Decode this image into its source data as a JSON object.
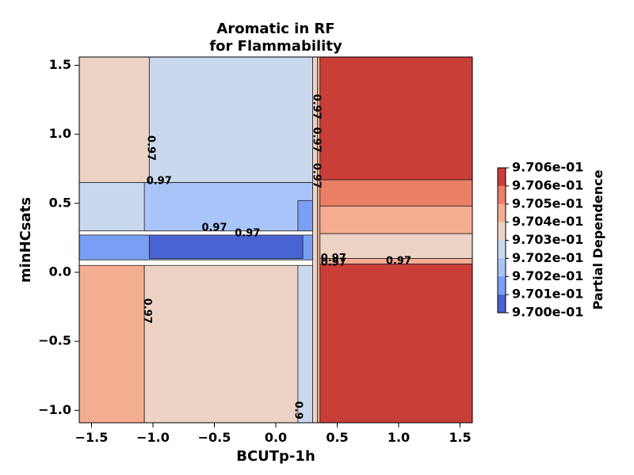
{
  "chart_data": {
    "type": "contour",
    "title_lines": [
      "Aromatic in RF",
      "for Flammability"
    ],
    "xlabel": "BCUTp-1h",
    "ylabel": "minHCsats",
    "xlim": [
      -1.6,
      1.6
    ],
    "ylim": [
      -1.09,
      1.56
    ],
    "xticks": [
      {
        "value": -1.5,
        "label": "−1.5"
      },
      {
        "value": -1.0,
        "label": "−1.0"
      },
      {
        "value": -0.5,
        "label": "−0.5"
      },
      {
        "value": 0.0,
        "label": "0.0"
      },
      {
        "value": 0.5,
        "label": "0.5"
      },
      {
        "value": 1.0,
        "label": "1.0"
      },
      {
        "value": 1.5,
        "label": "1.5"
      }
    ],
    "yticks": [
      {
        "value": -1.0,
        "label": "−1.0"
      },
      {
        "value": -0.5,
        "label": "−0.5"
      },
      {
        "value": 0.0,
        "label": "0.0"
      },
      {
        "value": 0.5,
        "label": "0.5"
      },
      {
        "value": 1.0,
        "label": "1.0"
      },
      {
        "value": 1.5,
        "label": "1.5"
      }
    ],
    "regions": [
      {
        "x": [
          -1.6,
          -1.03
        ],
        "y": [
          0.65,
          1.56
        ],
        "color": "#ecd3c5"
      },
      {
        "x": [
          -1.03,
          0.3
        ],
        "y": [
          0.65,
          1.56
        ],
        "color": "#cad8ee"
      },
      {
        "x": [
          -1.6,
          0.3
        ],
        "y": [
          0.3,
          0.65
        ],
        "color": "#cad8ee"
      },
      {
        "x": [
          -1.07,
          0.3
        ],
        "y": [
          0.3,
          0.65
        ],
        "color": "#a9c4f8"
      },
      {
        "x": [
          0.18,
          0.3
        ],
        "y": [
          0.3,
          0.52
        ],
        "color": "#7a9ef4"
      },
      {
        "x": [
          -1.6,
          0.3
        ],
        "y": [
          0.09,
          0.27
        ],
        "color": "#7a9ef4"
      },
      {
        "x": [
          -1.03,
          0.22
        ],
        "y": [
          0.1,
          0.27
        ],
        "color": "#4a63d3"
      },
      {
        "x": [
          -1.6,
          -1.07
        ],
        "y": [
          -1.09,
          0.05
        ],
        "color": "#f5ad92"
      },
      {
        "x": [
          -1.07,
          0.18
        ],
        "y": [
          -1.09,
          0.05
        ],
        "color": "#ecd3c5"
      },
      {
        "x": [
          0.18,
          0.3
        ],
        "y": [
          -1.09,
          0.05
        ],
        "color": "#cad8ee"
      },
      {
        "x": [
          0.3,
          0.34
        ],
        "y": [
          -1.09,
          1.56
        ],
        "color": "#ecd3c5"
      },
      {
        "x": [
          0.34,
          0.36
        ],
        "y": [
          -1.09,
          1.56
        ],
        "color": "#f5ad92"
      },
      {
        "x": [
          0.36,
          1.6
        ],
        "y": [
          0.67,
          1.56
        ],
        "color": "#c93e36"
      },
      {
        "x": [
          0.36,
          1.6
        ],
        "y": [
          0.48,
          0.67
        ],
        "color": "#ea7f65"
      },
      {
        "x": [
          0.36,
          1.6
        ],
        "y": [
          0.28,
          0.48
        ],
        "color": "#f5ad92"
      },
      {
        "x": [
          0.36,
          1.6
        ],
        "y": [
          0.1,
          0.28
        ],
        "color": "#ecd3c5"
      },
      {
        "x": [
          0.36,
          1.6
        ],
        "y": [
          0.06,
          0.1
        ],
        "color": "#f5ad92"
      },
      {
        "x": [
          0.36,
          1.6
        ],
        "y": [
          -1.09,
          0.06
        ],
        "color": "#c93e36"
      }
    ],
    "contour_labels": [
      {
        "text": "0.97",
        "x": -1.02,
        "y": 0.9,
        "rotation": 90
      },
      {
        "text": "0.97",
        "x": -0.95,
        "y": 0.66,
        "rotation": 0
      },
      {
        "text": "0.97",
        "x": -0.5,
        "y": 0.32,
        "rotation": 0
      },
      {
        "text": "0.97",
        "x": -0.23,
        "y": 0.28,
        "rotation": 0
      },
      {
        "text": "0.97",
        "x": -1.05,
        "y": -0.28,
        "rotation": 90
      },
      {
        "text": "0.9",
        "x": 0.18,
        "y": -1.0,
        "rotation": 90
      },
      {
        "text": "0.97",
        "x": 0.33,
        "y": 1.2,
        "rotation": 90
      },
      {
        "text": "0.97",
        "x": 0.33,
        "y": 0.96,
        "rotation": 90
      },
      {
        "text": "0.97",
        "x": 0.33,
        "y": 0.7,
        "rotation": 90
      },
      {
        "text": "0.97",
        "x": 0.47,
        "y": 0.1,
        "rotation": 0
      },
      {
        "text": "0.97",
        "x": 0.47,
        "y": 0.07,
        "rotation": 0
      },
      {
        "text": "0.97",
        "x": 1.0,
        "y": 0.08,
        "rotation": 0
      }
    ],
    "colorbar": {
      "label": "Partial Dependence",
      "levels": [
        "9.706e-01",
        "9.706e-01",
        "9.705e-01",
        "9.704e-01",
        "9.703e-01",
        "9.702e-01",
        "9.702e-01",
        "9.701e-01",
        "9.700e-01"
      ],
      "colors": [
        "#c93e36",
        "#ea7f65",
        "#f5ad92",
        "#ecd3c5",
        "#cad8ee",
        "#a9c4f8",
        "#7a9ef4",
        "#4a63d3"
      ]
    }
  }
}
